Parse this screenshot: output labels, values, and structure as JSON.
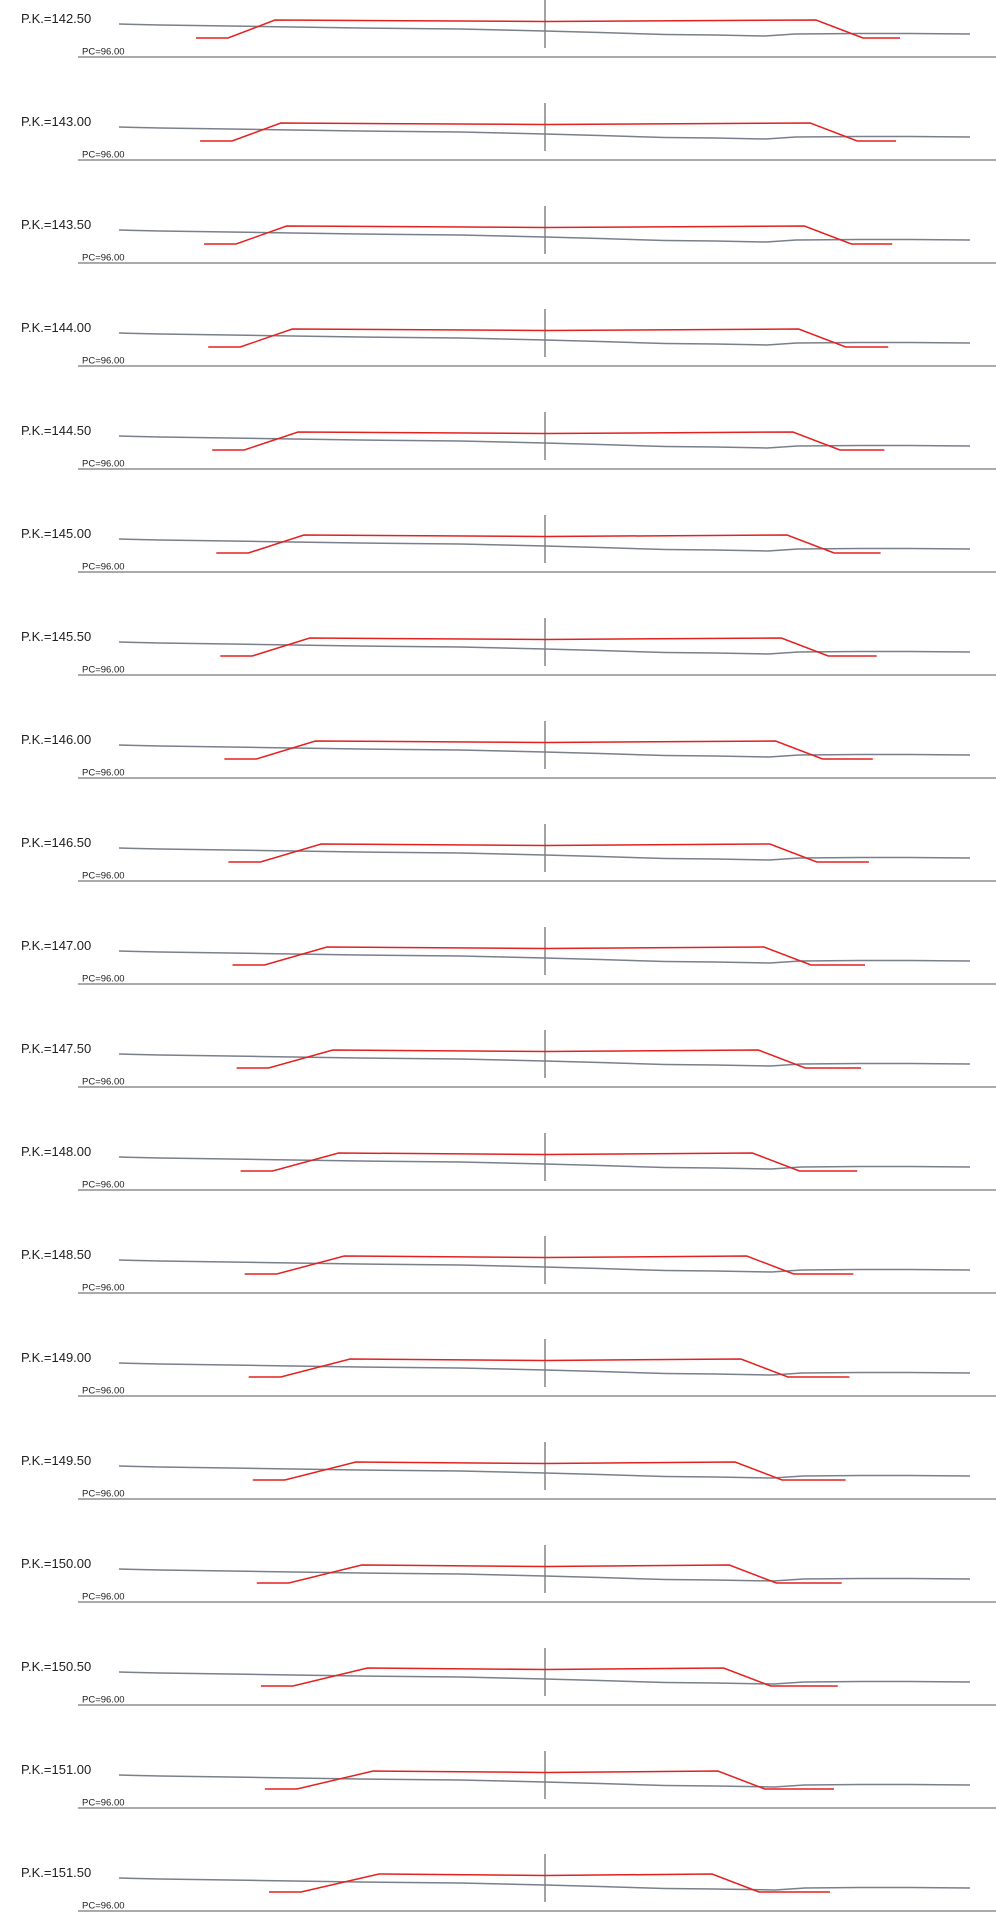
{
  "drawing": {
    "colors": {
      "background": "#ffffff",
      "design_profile": "#e32121",
      "terrain_profile": "#7a7f8c",
      "datum": "#555555",
      "text": "#222222"
    },
    "sections": [
      {
        "pk_label": "P.K.=142.50",
        "pc_label": "PC=96.00"
      },
      {
        "pk_label": "P.K.=143.00",
        "pc_label": "PC=96.00"
      },
      {
        "pk_label": "P.K.=143.50",
        "pc_label": "PC=96.00"
      },
      {
        "pk_label": "P.K.=144.00",
        "pc_label": "PC=96.00"
      },
      {
        "pk_label": "P.K.=144.50",
        "pc_label": "PC=96.00"
      },
      {
        "pk_label": "P.K.=145.00",
        "pc_label": "PC=96.00"
      },
      {
        "pk_label": "P.K.=145.50",
        "pc_label": "PC=96.00"
      },
      {
        "pk_label": "P.K.=146.00",
        "pc_label": "PC=96.00"
      },
      {
        "pk_label": "P.K.=146.50",
        "pc_label": "PC=96.00"
      },
      {
        "pk_label": "P.K.=147.00",
        "pc_label": "PC=96.00"
      },
      {
        "pk_label": "P.K.=147.50",
        "pc_label": "PC=96.00"
      },
      {
        "pk_label": "P.K.=148.00",
        "pc_label": "PC=96.00"
      },
      {
        "pk_label": "P.K.=148.50",
        "pc_label": "PC=96.00"
      },
      {
        "pk_label": "P.K.=149.00",
        "pc_label": "PC=96.00"
      },
      {
        "pk_label": "P.K.=149.50",
        "pc_label": "PC=96.00"
      },
      {
        "pk_label": "P.K.=150.00",
        "pc_label": "PC=96.00"
      },
      {
        "pk_label": "P.K.=150.50",
        "pc_label": "PC=96.00"
      },
      {
        "pk_label": "P.K.=151.00",
        "pc_label": "PC=96.00"
      },
      {
        "pk_label": "P.K.=151.50",
        "pc_label": "PC=96.00"
      }
    ]
  }
}
